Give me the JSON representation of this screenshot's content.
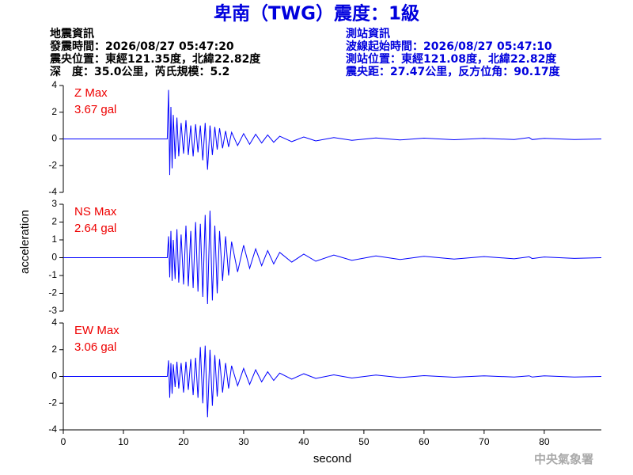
{
  "title": "卑南（TWG）震度：1級",
  "info_left": [
    "地震資訊",
    "發震時間：2026/08/27 05:47:20",
    "震央位置：東經121.35度，北緯22.82度",
    "深　度：35.0公里，芮氏規模：5.2"
  ],
  "info_right": [
    "測站資訊",
    "波線起始時間：2026/08/27 05:47:10",
    "測站位置：東經121.08度，北緯22.82度",
    "震央距：27.47公里，反方位角：90.17度"
  ],
  "watermark": "中央氣象署",
  "chart_data": [
    {
      "type": "line",
      "annotation": [
        "Z Max",
        "3.67 gal"
      ],
      "color": "#0000ff",
      "xlim": [
        0,
        89.5
      ],
      "ylim": [
        -4,
        4
      ],
      "yticks": [
        -4,
        -2,
        0,
        2,
        4
      ],
      "x": [
        0,
        17.3,
        17.5,
        17.7,
        17.9,
        18.1,
        18.3,
        18.6,
        18.9,
        19.2,
        19.6,
        20,
        20.4,
        20.8,
        21.2,
        21.6,
        22,
        22.4,
        22.8,
        23.2,
        23.6,
        24,
        24.4,
        24.8,
        25.2,
        25.6,
        26,
        26.5,
        27,
        27.5,
        28,
        29,
        30,
        31,
        32,
        33,
        34,
        35,
        36,
        38,
        40,
        42,
        45,
        48,
        52,
        56,
        60,
        65,
        70,
        75,
        77.5,
        78,
        80,
        85,
        89.5
      ],
      "values": [
        0,
        0,
        3.67,
        -2.7,
        2.4,
        -2.2,
        1.8,
        -1.5,
        1.6,
        -1.3,
        1.2,
        -1.1,
        1.4,
        -1.2,
        1.0,
        -1.3,
        1.1,
        -1.0,
        1.0,
        -1.6,
        1.2,
        -2.3,
        1.0,
        -1.2,
        0.9,
        -0.8,
        0.8,
        -0.7,
        0.6,
        -0.6,
        0.5,
        -0.5,
        0.4,
        -0.4,
        0.35,
        -0.3,
        0.3,
        -0.25,
        0.2,
        -0.2,
        0.15,
        -0.15,
        0.1,
        -0.1,
        0.08,
        -0.08,
        0.06,
        -0.06,
        0.05,
        -0.05,
        0.1,
        -0.05,
        0.04,
        -0.04,
        0
      ]
    },
    {
      "type": "line",
      "annotation": [
        "NS Max",
        "2.64 gal"
      ],
      "color": "#0000ff",
      "ylabel": "acceleration",
      "xlim": [
        0,
        89.5
      ],
      "ylim": [
        -3,
        3
      ],
      "yticks": [
        -3,
        -2,
        -1,
        0,
        1,
        2,
        3
      ],
      "x": [
        0,
        17.3,
        17.5,
        17.7,
        17.9,
        18.1,
        18.3,
        18.6,
        18.9,
        19.2,
        19.6,
        20,
        20.4,
        20.8,
        21.2,
        21.6,
        22,
        22.4,
        22.8,
        23.2,
        23.6,
        24,
        24.4,
        24.8,
        25.2,
        25.6,
        26,
        26.5,
        27,
        27.5,
        28,
        29,
        30,
        31,
        32,
        33,
        34,
        35,
        36,
        38,
        40,
        42,
        45,
        48,
        52,
        56,
        60,
        65,
        70,
        75,
        77.5,
        78,
        80,
        85,
        89.5
      ],
      "values": [
        0,
        0,
        1.2,
        -1.1,
        1.5,
        -1.3,
        1.0,
        -1.2,
        1.6,
        -1.4,
        1.3,
        -1.5,
        1.8,
        -1.6,
        1.5,
        -1.7,
        2.0,
        -1.9,
        1.9,
        -2.2,
        2.4,
        -2.6,
        2.64,
        -2.4,
        1.8,
        -2.0,
        1.5,
        -1.3,
        1.2,
        -1.0,
        0.9,
        -0.8,
        0.7,
        -0.6,
        0.5,
        -0.45,
        0.4,
        -0.35,
        0.3,
        -0.25,
        0.2,
        -0.2,
        0.15,
        -0.15,
        0.1,
        -0.1,
        0.08,
        -0.08,
        0.06,
        -0.06,
        0.05,
        -0.05,
        0.04,
        -0.04,
        0
      ]
    },
    {
      "type": "line",
      "annotation": [
        "EW Max",
        "3.06 gal"
      ],
      "color": "#0000ff",
      "xlabel": "second",
      "xlim": [
        0,
        89.5
      ],
      "xticks": [
        0,
        10,
        20,
        30,
        40,
        50,
        60,
        70,
        80
      ],
      "ylim": [
        -4,
        4
      ],
      "yticks": [
        -4,
        -2,
        0,
        2,
        4
      ],
      "x": [
        0,
        17.3,
        17.5,
        17.7,
        17.9,
        18.1,
        18.3,
        18.6,
        18.9,
        19.2,
        19.6,
        20,
        20.4,
        20.8,
        21.2,
        21.6,
        22,
        22.4,
        22.8,
        23.2,
        23.6,
        24,
        24.4,
        24.8,
        25.2,
        25.6,
        26,
        26.5,
        27,
        27.5,
        28,
        29,
        30,
        31,
        32,
        33,
        34,
        35,
        36,
        38,
        40,
        42,
        45,
        48,
        52,
        56,
        60,
        65,
        70,
        75,
        77.5,
        78,
        80,
        85,
        89.5
      ],
      "values": [
        0,
        0,
        1.2,
        -1.6,
        1.0,
        -1.3,
        0.9,
        -0.8,
        1.1,
        -0.9,
        1.0,
        -1.2,
        1.1,
        -1.0,
        1.3,
        -1.4,
        1.4,
        -1.6,
        2.2,
        -2.0,
        2.3,
        -3.06,
        2.0,
        -2.2,
        1.6,
        -1.5,
        1.3,
        -1.2,
        1.0,
        -0.9,
        0.8,
        -0.7,
        0.6,
        -0.6,
        0.5,
        -0.4,
        0.35,
        -0.3,
        0.25,
        -0.2,
        0.2,
        -0.15,
        0.12,
        -0.12,
        0.1,
        -0.08,
        0.06,
        -0.06,
        0.05,
        -0.05,
        0.05,
        -0.05,
        0.04,
        -0.04,
        0
      ]
    }
  ]
}
